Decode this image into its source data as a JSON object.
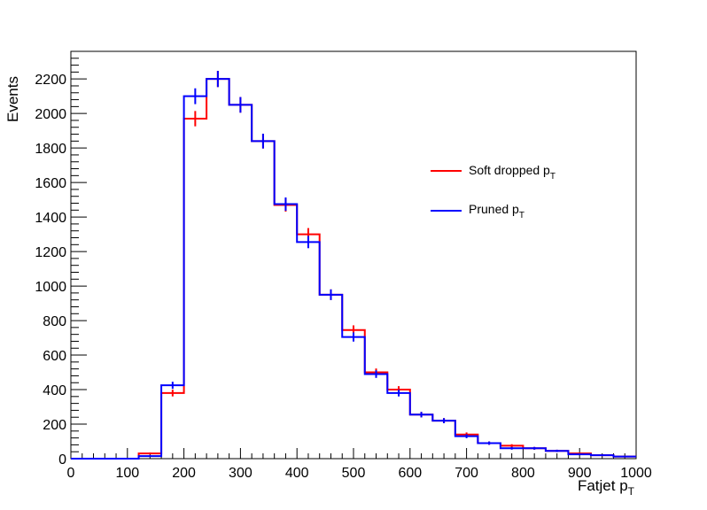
{
  "chart_data": {
    "type": "line",
    "drawstyle": "histogram-step",
    "xlabel": "Fatjet p",
    "xlabel_sub": "T",
    "ylabel": "Events",
    "xlim": [
      0,
      1000
    ],
    "ylim": [
      0,
      2360
    ],
    "x_ticks": [
      0,
      100,
      200,
      300,
      400,
      500,
      600,
      700,
      800,
      900,
      1000
    ],
    "y_ticks": [
      0,
      200,
      400,
      600,
      800,
      1000,
      1200,
      1400,
      1600,
      1800,
      2000,
      2200
    ],
    "bin_edges": [
      0,
      40,
      80,
      120,
      160,
      200,
      240,
      280,
      320,
      360,
      400,
      440,
      480,
      520,
      560,
      600,
      640,
      680,
      720,
      760,
      800,
      840,
      880,
      920,
      960,
      1000
    ],
    "legend_position": "right-middle",
    "grid": false,
    "series": [
      {
        "name": "Soft dropped p",
        "name_sub": "T",
        "color": "#ff0000",
        "values": [
          0,
          0,
          0,
          30,
          380,
          1970,
          2200,
          2050,
          1840,
          1470,
          1300,
          950,
          745,
          500,
          400,
          255,
          220,
          140,
          90,
          75,
          60,
          45,
          30,
          20,
          12
        ]
      },
      {
        "name": "Pruned p",
        "name_sub": "T",
        "color": "#0000ff",
        "values": [
          0,
          0,
          0,
          15,
          425,
          2100,
          2200,
          2050,
          1840,
          1475,
          1255,
          950,
          705,
          490,
          380,
          255,
          220,
          130,
          90,
          60,
          60,
          45,
          25,
          20,
          12
        ]
      }
    ]
  }
}
